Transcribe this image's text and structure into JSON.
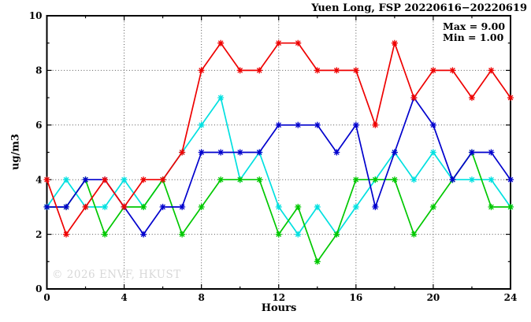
{
  "watermark": "© 2026 ENVF, HKUST",
  "chart_data": {
    "type": "line",
    "title": "Yuen Long, FSP 20220616−20220619",
    "xlabel": "Hours",
    "ylabel": "ug/m3",
    "annotations": [
      "Max = 9.00",
      "Min = 1.00"
    ],
    "legend_position": "none",
    "grid": true,
    "marker": "asterisk",
    "xlim": [
      0,
      24
    ],
    "ylim": [
      0,
      10
    ],
    "xticks_major": [
      0,
      4,
      8,
      12,
      16,
      20,
      24
    ],
    "xticks_minor": [
      2,
      6,
      10,
      14,
      18,
      22
    ],
    "yticks_major": [
      0,
      2,
      4,
      6,
      8,
      10
    ],
    "yticks_minor": [
      1,
      3,
      5,
      7,
      9
    ],
    "grid_x": [
      4,
      8,
      12,
      16,
      20
    ],
    "grid_y": [
      2,
      4,
      6,
      8
    ],
    "x": [
      0,
      1,
      2,
      3,
      4,
      5,
      6,
      7,
      8,
      9,
      10,
      11,
      12,
      13,
      14,
      15,
      16,
      17,
      18,
      19,
      20,
      21,
      22,
      23,
      24
    ],
    "series": [
      {
        "name": "cyan-series",
        "color": "#00e0e0",
        "values": [
          3,
          4,
          3,
          3,
          4,
          3,
          4,
          5,
          6,
          7,
          4,
          5,
          3,
          2,
          3,
          2,
          3,
          4,
          5,
          4,
          5,
          4,
          4,
          4,
          3
        ]
      },
      {
        "name": "green-series",
        "color": "#00c800",
        "values": [
          3,
          3,
          4,
          2,
          3,
          3,
          4,
          2,
          3,
          4,
          4,
          4,
          2,
          3,
          1,
          2,
          4,
          4,
          4,
          2,
          3,
          4,
          5,
          3,
          3
        ]
      },
      {
        "name": "blue-series",
        "color": "#0000cd",
        "values": [
          3,
          3,
          4,
          4,
          3,
          2,
          3,
          3,
          5,
          5,
          5,
          5,
          6,
          6,
          6,
          5,
          6,
          3,
          5,
          7,
          6,
          4,
          5,
          5,
          4
        ]
      },
      {
        "name": "red-series",
        "color": "#ee0000",
        "values": [
          4,
          2,
          3,
          4,
          3,
          4,
          4,
          5,
          8,
          9,
          8,
          8,
          9,
          9,
          8,
          8,
          8,
          6,
          9,
          7,
          8,
          8,
          7,
          8,
          7
        ]
      }
    ]
  }
}
